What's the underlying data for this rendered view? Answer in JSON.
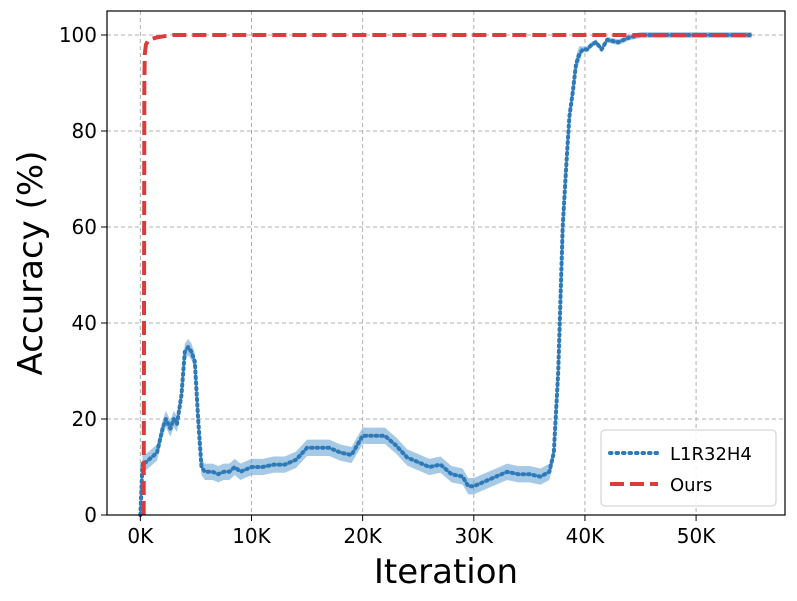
{
  "chart_data": {
    "type": "line",
    "xlabel": "Iteration",
    "ylabel": "Accuracy (%)",
    "xlim": [
      -3000,
      58000
    ],
    "ylim": [
      0,
      105
    ],
    "x_ticks": [
      0,
      10000,
      20000,
      30000,
      40000,
      50000
    ],
    "x_tick_labels": [
      "0K",
      "10K",
      "20K",
      "30K",
      "40K",
      "50K"
    ],
    "y_ticks": [
      0,
      20,
      40,
      60,
      80,
      100
    ],
    "y_tick_labels": [
      "0",
      "20",
      "40",
      "60",
      "80",
      "100"
    ],
    "grid": true,
    "legend_position": "lower-right",
    "series": [
      {
        "name": "L1R32H4",
        "color": "#2e7ab8",
        "band_color": "#6aa6d4",
        "line_style": "dotted",
        "x": [
          0,
          200,
          500,
          1000,
          1500,
          2000,
          2300,
          2700,
          3000,
          3300,
          3700,
          4000,
          4300,
          4600,
          4900,
          5200,
          5500,
          5800,
          6000,
          6500,
          7000,
          7500,
          8000,
          8500,
          9000,
          10000,
          11000,
          12000,
          13000,
          14000,
          15000,
          16000,
          17000,
          18000,
          19000,
          20000,
          21000,
          22000,
          23000,
          24000,
          25000,
          26000,
          27000,
          28000,
          29000,
          29500,
          30000,
          31000,
          32000,
          33000,
          34000,
          35000,
          36000,
          36800,
          37200,
          37600,
          38000,
          38300,
          38600,
          38900,
          39200,
          39500,
          39800,
          40200,
          40600,
          41000,
          41500,
          42000,
          43000,
          44000,
          45000,
          46000,
          47000,
          48000,
          50000,
          52000,
          55000
        ],
        "values": [
          0,
          11,
          11,
          12,
          13,
          18,
          20,
          18,
          20,
          19,
          25,
          34,
          35,
          34,
          32,
          20,
          10,
          9,
          9,
          9,
          8.5,
          9,
          9,
          10,
          9,
          10,
          10,
          10.5,
          10.5,
          11.5,
          14,
          14,
          14,
          13,
          12.5,
          16.5,
          16.5,
          16.5,
          14.5,
          12,
          11,
          10,
          10.5,
          8.5,
          8,
          6,
          6,
          7,
          8,
          9,
          8.5,
          8.5,
          8,
          9,
          13,
          30,
          60,
          72,
          83,
          88,
          94,
          96,
          97,
          97,
          98,
          98.5,
          97,
          99,
          98.5,
          99.5,
          100,
          100,
          100,
          100,
          100,
          100,
          100
        ]
      },
      {
        "name": "Ours",
        "color": "#dc3b3b",
        "line_style": "dashed",
        "x": [
          300,
          330,
          360,
          400,
          500,
          700,
          1000,
          1500,
          2000,
          3000,
          5000,
          10000,
          20000,
          30000,
          40000,
          50000,
          55000
        ],
        "values": [
          0,
          40,
          90,
          96,
          98,
          98.8,
          99.2,
          99.5,
          99.7,
          100,
          100,
          100,
          100,
          100,
          100,
          100,
          100
        ]
      }
    ]
  }
}
